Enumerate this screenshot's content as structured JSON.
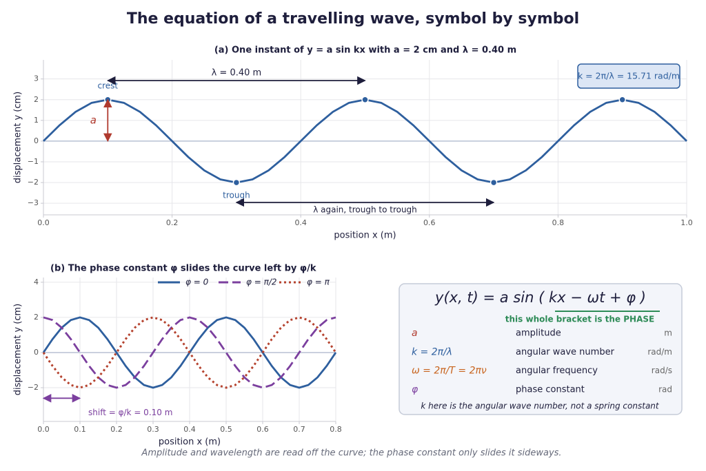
{
  "title": "The equation of a travelling wave, symbol by symbol",
  "chart_data": [
    {
      "type": "line",
      "title": "(a)  One instant of  y = a sin kx   with  a = 2 cm  and  λ = 0.40 m",
      "xlabel": "position  x  (m)",
      "ylabel": "displacement  y  (cm)",
      "x": [
        0,
        0.025,
        0.05,
        0.075,
        0.1,
        0.125,
        0.15,
        0.175,
        0.2,
        0.225,
        0.25,
        0.275,
        0.3,
        0.325,
        0.35,
        0.375,
        0.4,
        0.425,
        0.45,
        0.475,
        0.5,
        0.525,
        0.55,
        0.575,
        0.6,
        0.625,
        0.65,
        0.675,
        0.7,
        0.725,
        0.75,
        0.775,
        0.8,
        0.825,
        0.85,
        0.875,
        0.9,
        0.925,
        0.95,
        0.975,
        1
      ],
      "series": [
        {
          "color": "#2e5f9e",
          "style": "solid",
          "values": [
            0,
            0.765,
            1.414,
            1.848,
            2,
            1.848,
            1.414,
            0.765,
            0,
            -0.765,
            -1.414,
            -1.848,
            -2,
            -1.848,
            -1.414,
            -0.765,
            0,
            0.765,
            1.414,
            1.848,
            2,
            1.848,
            1.414,
            0.765,
            0,
            -0.765,
            -1.414,
            -1.848,
            -2,
            -1.848,
            -1.414,
            -0.765,
            0,
            0.765,
            1.414,
            1.848,
            2,
            1.848,
            1.414,
            0.765,
            0
          ]
        }
      ],
      "points": {
        "x": [
          0.1,
          0.5,
          0.9,
          0.3,
          0.7
        ],
        "y": [
          2,
          2,
          2,
          -2,
          -2
        ]
      },
      "crest_label": "crest",
      "trough_label": "trough",
      "amplitude_label": "a",
      "wavelength_label": "λ = 0.40 m",
      "wavelength_again_label": "λ  again, trough to trough",
      "k_box": "k = 2π/λ = 15.71 rad/m",
      "xlim": [
        0,
        1
      ],
      "xticks": [
        {
          "value": 0,
          "label": "0.0"
        },
        0.2,
        0.4,
        0.6,
        0.8,
        {
          "value": 1,
          "label": "1.0"
        }
      ],
      "ylim": [
        -3.56,
        3.92
      ],
      "yticks": [
        {
          "value": -3,
          "label": "−3"
        },
        {
          "value": -2,
          "label": "−2"
        },
        {
          "value": -1,
          "label": "−1"
        },
        0,
        1,
        2,
        3
      ],
      "grid": true,
      "zero_line": true
    },
    {
      "type": "line",
      "title": "(b)  The phase constant φ slides the curve left by φ/k",
      "xlabel": "position  x  (m)",
      "ylabel": "displacement  y  (cm)",
      "x": [
        0,
        0.025,
        0.05,
        0.075,
        0.1,
        0.125,
        0.15,
        0.175,
        0.2,
        0.225,
        0.25,
        0.275,
        0.3,
        0.325,
        0.35,
        0.375,
        0.4,
        0.425,
        0.45,
        0.475,
        0.5,
        0.525,
        0.55,
        0.575,
        0.6,
        0.625,
        0.65,
        0.675,
        0.7,
        0.725,
        0.75,
        0.775,
        0.8
      ],
      "series": [
        {
          "name": "φ = 0",
          "color": "#2e5f9e",
          "style": "solid",
          "values": [
            0,
            0.765,
            1.414,
            1.848,
            2,
            1.848,
            1.414,
            0.765,
            0,
            -0.765,
            -1.414,
            -1.848,
            -2,
            -1.848,
            -1.414,
            -0.765,
            0,
            0.765,
            1.414,
            1.848,
            2,
            1.848,
            1.414,
            0.765,
            0,
            -0.765,
            -1.414,
            -1.848,
            -2,
            -1.848,
            -1.414,
            -0.765,
            0
          ]
        },
        {
          "name": "φ = π/2",
          "color": "#7b3f9e",
          "style": "dashed",
          "values": [
            2,
            1.848,
            1.414,
            0.765,
            0,
            -0.765,
            -1.414,
            -1.848,
            -2,
            -1.848,
            -1.414,
            -0.765,
            0,
            0.765,
            1.414,
            1.848,
            2,
            1.848,
            1.414,
            0.765,
            0,
            -0.765,
            -1.414,
            -1.848,
            -2,
            -1.848,
            -1.414,
            -0.765,
            0,
            0.765,
            1.414,
            1.848,
            2
          ]
        },
        {
          "name": "φ = π",
          "color": "#b5432f",
          "style": "dotted",
          "values": [
            0,
            -0.765,
            -1.414,
            -1.848,
            -2,
            -1.848,
            -1.414,
            -0.765,
            0,
            0.765,
            1.414,
            1.848,
            2,
            1.848,
            1.414,
            0.765,
            0,
            -0.765,
            -1.414,
            -1.848,
            -2,
            -1.848,
            -1.414,
            -0.765,
            0,
            0.765,
            1.414,
            1.848,
            2,
            1.848,
            1.414,
            0.765,
            0
          ]
        }
      ],
      "shift_arrow": {
        "x": [
          0,
          0.1
        ],
        "y": -2.6,
        "label": "shift  = φ/k = 0.10 m"
      },
      "xlim": [
        0,
        0.8
      ],
      "xticks": [
        {
          "value": 0,
          "label": "0.0"
        },
        0.1,
        0.2,
        0.3,
        0.4,
        0.5,
        0.6,
        0.7,
        0.8
      ],
      "ylim": [
        -3.92,
        4.27
      ],
      "yticks": [
        {
          "value": -2,
          "label": "−2"
        },
        0,
        2,
        4
      ],
      "grid": true,
      "zero_line": true,
      "legend": "upper right"
    }
  ],
  "equation_box": {
    "equation": "y(x, t)  =  a sin ( kx  −  ωt  +  φ )",
    "phase_note": "this whole bracket is the PHASE",
    "rows": [
      [
        "a",
        "amplitude",
        "m"
      ],
      [
        "k = 2π/λ",
        "angular wave number",
        "rad/m"
      ],
      [
        "ω = 2π/T = 2πν",
        "angular frequency",
        "rad/s"
      ],
      [
        "φ",
        "phase constant",
        "rad"
      ]
    ],
    "footnote": "k here is the angular wave number, not a spring constant"
  },
  "footnote": "Amplitude and wavelength are read off the curve; the phase constant only slides it sideways."
}
